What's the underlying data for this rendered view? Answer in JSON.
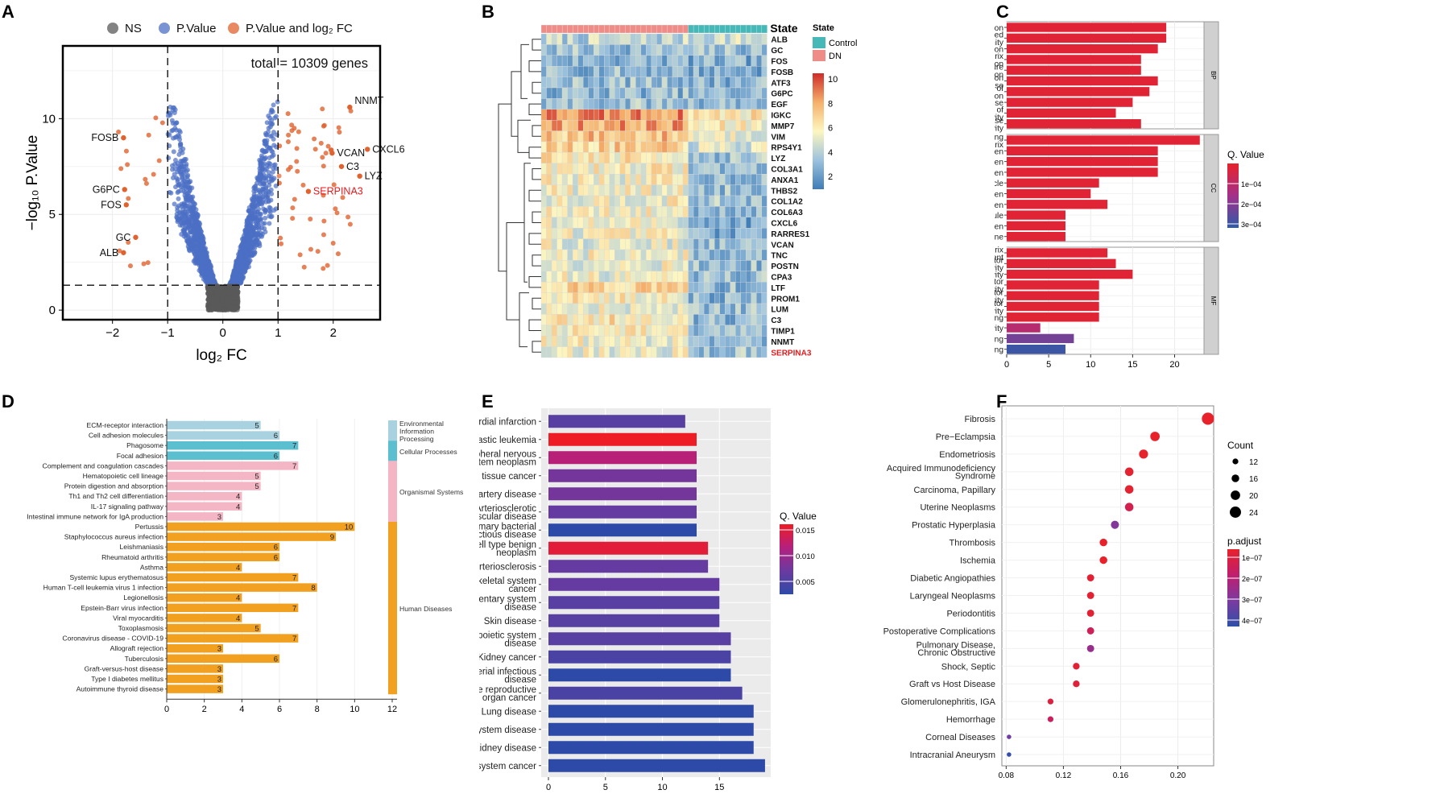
{
  "colors": {
    "ns": "#5a5a5a",
    "pvalue": "#4c6fc4",
    "pfc": "#e0622e",
    "highlight": "#e41a1c",
    "bar_red": "#e8222a",
    "envinfo": "#a9d2e0",
    "cellproc": "#5bbfcf",
    "organismal": "#f4b6c4",
    "human": "#f2a01f",
    "heat_low": "#3f7cb6",
    "heat_mid": "#fdf6c0",
    "heat_high": "#cf2c2a",
    "control": "#46b8b8",
    "dn": "#ee8c87"
  },
  "panel_labels": [
    "A",
    "B",
    "C",
    "D",
    "E",
    "F"
  ],
  "chart_data": [
    {
      "id": "A",
      "type": "scatter",
      "title": "total = 10309 genes",
      "xlabel": "log₂ FC",
      "ylabel": "−log₁₀ P.Value",
      "xlim": [
        -2.9,
        2.85
      ],
      "ylim": [
        -0.5,
        13.8
      ],
      "xticks": [
        -2,
        -1,
        0,
        1,
        2
      ],
      "xtick_labels": [
        "−2",
        "−1",
        "0",
        "1",
        "2"
      ],
      "yticks": [
        0,
        5,
        10
      ],
      "ytick_labels": [
        "0",
        "5",
        "10"
      ],
      "thresholds": {
        "fc": [
          -1,
          1
        ],
        "p": 1.3
      },
      "legend": [
        "NS",
        "P.Value",
        "P.Value and log₂ FC"
      ],
      "labeled_points": [
        {
          "label": "NNMT",
          "x": 2.3,
          "y": 10.6
        },
        {
          "label": "CXCL6",
          "x": 2.62,
          "y": 8.4
        },
        {
          "label": "VCAN",
          "x": 1.98,
          "y": 8.2
        },
        {
          "label": "C3",
          "x": 2.15,
          "y": 7.5
        },
        {
          "label": "LYZ",
          "x": 2.48,
          "y": 7.0
        },
        {
          "label": "SERPINA3",
          "x": 1.55,
          "y": 6.2,
          "highlight": true
        },
        {
          "label": "FOSB",
          "x": -1.8,
          "y": 9.0
        },
        {
          "label": "G6PC",
          "x": -1.78,
          "y": 6.3
        },
        {
          "label": "FOS",
          "x": -1.75,
          "y": 5.5
        },
        {
          "label": "GC",
          "x": -1.58,
          "y": 3.8
        },
        {
          "label": "ALB",
          "x": -1.8,
          "y": 3.0
        }
      ]
    },
    {
      "id": "B",
      "type": "heatmap",
      "legend_title": "State",
      "groups": [
        "Control",
        "DN"
      ],
      "scale_ticks": [
        "10",
        "8",
        "6",
        "4",
        "2"
      ],
      "scale_range": [
        1,
        11
      ],
      "n_dn": 28,
      "n_control": 15,
      "genes": [
        "ALB",
        "GC",
        "FOS",
        "FOSB",
        "ATF3",
        "G6PC",
        "EGF",
        "IGKC",
        "MMP7",
        "VIM",
        "RPS4Y1",
        "LYZ",
        "COL3A1",
        "ANXA1",
        "THBS2",
        "COL1A2",
        "COL6A3",
        "CXCL6",
        "RARRES1",
        "VCAN",
        "TNC",
        "POSTN",
        "CPA3",
        "LTF",
        "PROM1",
        "LUM",
        "C3",
        "TIMP1",
        "NNMT",
        "SERPINA3"
      ],
      "dn_level": [
        4.2,
        3.4,
        3.0,
        3.2,
        3.4,
        3.2,
        3.5,
        9.0,
        8.6,
        7.8,
        7.2,
        6.4,
        6.2,
        5.9,
        5.8,
        5.9,
        5.8,
        5.6,
        5.8,
        5.6,
        5.8,
        5.8,
        5.6,
        7.2,
        6.2,
        5.8,
        6.6,
        6.0,
        5.8,
        5.6
      ],
      "control_level": [
        4.8,
        3.4,
        2.7,
        2.8,
        3.0,
        3.0,
        3.4,
        6.6,
        6.0,
        5.8,
        5.0,
        3.6,
        3.6,
        3.4,
        3.4,
        3.6,
        3.4,
        2.6,
        2.8,
        3.3,
        3.2,
        3.3,
        3.3,
        3.2,
        3.0,
        3.4,
        3.2,
        3.4,
        3.5,
        3.6
      ]
    },
    {
      "id": "C",
      "type": "bar",
      "legend_title": "Q. Value",
      "legend_ticks": [
        "1e−04",
        "2e−04",
        "3e−04"
      ],
      "x_ticks": [
        0,
        5,
        10,
        15,
        20
      ],
      "xlim": [
        0,
        23.5
      ],
      "facets": [
        {
          "name": "BP",
          "categories": [
            "Neutrophil activation",
            "Neutrophil mediated immunity",
            "Neutrophil degranulation",
            "Extracellular matrix organization",
            "Extracellular structure organization",
            "Neutrophil activation involved in immune response",
            "Positive regulation of cytokine production",
            "Humoral immune response",
            "Negative regulation of endopeptidase activity",
            "Regulation of endopeptidase activity"
          ],
          "values": [
            19,
            19,
            18,
            16,
            16,
            18,
            17,
            15,
            13,
            16
          ],
          "q": [
            0.2,
            0.2,
            0.2,
            0.2,
            0.2,
            0.2,
            0.2,
            0.2,
            0.2,
            0.2
          ]
        },
        {
          "name": "CC",
          "categories": [
            "Collagen−containing extracellular matrix",
            "Secretory granule lumen",
            "Cytoplasmic vesicle lumen",
            "Vesicle lumen",
            "Blood microparticle",
            "Vacuolar lumen",
            "Endoplasmic reticulum lumen",
            "Platelet alpha granule",
            "Azurophil granule lumen",
            "Basement membrane"
          ],
          "values": [
            23,
            18,
            18,
            18,
            11,
            10,
            12,
            7,
            7,
            7
          ],
          "q": [
            0.2,
            0.2,
            0.2,
            0.2,
            0.2,
            0.2,
            0.2,
            0.2,
            0.2,
            0.2
          ]
        },
        {
          "name": "MF",
          "categories": [
            "Extracellular matrix structural constituent",
            "Peptidase regulator activity",
            "Enzyme inhibitor activity",
            "Endopeptidase inhibitor activity",
            "Peptidase inhibitor activity",
            "Endopeptidase regulator activity",
            "Glycosaminoglycan binding",
            "Lipase inhibitor activity",
            "Heparin binding",
            "Protease binding"
          ],
          "values": [
            12,
            13,
            15,
            11,
            11,
            11,
            11,
            4,
            8,
            7
          ],
          "q": [
            0.2,
            0.2,
            0.2,
            0.2,
            0.2,
            0.2,
            0.2,
            1.2,
            2.4,
            3.2
          ]
        }
      ]
    },
    {
      "id": "D",
      "type": "bar",
      "categories": [
        "ECM-receptor interaction",
        "Cell adhesion molecules",
        "Phagosome",
        "Focal adhesion",
        "Complement and coagulation cascades",
        "Hematopoietic cell lineage",
        "Protein digestion and absorption",
        "Th1 and Th2 cell differentiation",
        "IL-17 signaling pathway",
        "Intestinal immune network for IgA production",
        "Pertussis",
        "Staphylococcus aureus infection",
        "Leishmaniasis",
        "Rheumatoid arthritis",
        "Asthma",
        "Systemic lupus erythematosus",
        "Human T-cell leukemia virus 1 infection",
        "Legionellosis",
        "Epstein-Barr virus infection",
        "Viral myocarditis",
        "Toxoplasmosis",
        "Coronavirus disease - COVID-19",
        "Allograft rejection",
        "Tuberculosis",
        "Graft-versus-host disease",
        "Type I diabetes mellitus",
        "Autoimmune thyroid disease"
      ],
      "values": [
        5,
        6,
        7,
        6,
        7,
        5,
        5,
        4,
        4,
        3,
        10,
        9,
        6,
        6,
        4,
        7,
        8,
        4,
        7,
        4,
        5,
        7,
        3,
        6,
        3,
        3,
        3
      ],
      "class": [
        "env",
        "env",
        "cell",
        "cell",
        "org",
        "org",
        "org",
        "org",
        "org",
        "org",
        "hum",
        "hum",
        "hum",
        "hum",
        "hum",
        "hum",
        "hum",
        "hum",
        "hum",
        "hum",
        "hum",
        "hum",
        "hum",
        "hum",
        "hum",
        "hum",
        "hum"
      ],
      "x_ticks": [
        0,
        2,
        4,
        6,
        8,
        10,
        12
      ],
      "xlim": [
        0,
        12
      ],
      "groups": [
        {
          "name": "Environmental Information Processing",
          "lines": [
            "Environmental",
            "Information",
            "Processing"
          ],
          "start": 0,
          "end": 1,
          "key": "env"
        },
        {
          "name": "Cellular Processes",
          "lines": [
            "Cellular Processes"
          ],
          "start": 2,
          "end": 3,
          "key": "cell"
        },
        {
          "name": "Organismal Systems",
          "lines": [
            "Organismal Systems"
          ],
          "start": 4,
          "end": 9,
          "key": "org"
        },
        {
          "name": "Human Diseases",
          "lines": [
            "Human Diseases"
          ],
          "start": 10,
          "end": 26,
          "key": "hum"
        }
      ]
    },
    {
      "id": "E",
      "type": "bar",
      "legend_title": "Q. Value",
      "legend_ticks": [
        "0.015",
        "0.010",
        "0.005"
      ],
      "x_ticks": [
        0,
        5,
        10,
        15
      ],
      "xlim": [
        0,
        19.5
      ],
      "categories": [
        "Myocardial infarction",
        "Lymphoblastic leukemia",
        "Peripheral nervous system neoplasm",
        "Connective tissue cancer",
        "Coronary artery disease",
        "Arteriosclerotic cardiovascular disease",
        "Primary bacterial infectious disease",
        "Cell type benign neoplasm",
        "Arteriosclerosis",
        "Musculoskeletal system cancer",
        "Integumentary system disease",
        "Skin disease",
        "Hematopoietic system disease",
        "Kidney cancer",
        "Bacterial infectious disease",
        "Female reproductive organ cancer",
        "Lung disease",
        "Urinary system disease",
        "Kidney disease",
        "Urinary system cancer"
      ],
      "values": [
        12,
        13,
        13,
        13,
        13,
        13,
        13,
        14,
        14,
        15,
        15,
        15,
        16,
        16,
        16,
        17,
        18,
        18,
        18,
        19
      ],
      "q": [
        0.0055,
        0.0155,
        0.0115,
        0.0075,
        0.0075,
        0.0065,
        0.0025,
        0.0145,
        0.0065,
        0.0065,
        0.0055,
        0.0055,
        0.0055,
        0.0045,
        0.0025,
        0.0045,
        0.0025,
        0.0025,
        0.0025,
        0.0025
      ]
    },
    {
      "id": "F",
      "type": "scatter",
      "legend_count_title": "Count",
      "legend_count": [
        "12",
        "16",
        "20",
        "24"
      ],
      "legend_padj_title": "p.adjust",
      "legend_padj": [
        "1e−07",
        "2e−07",
        "3e−07",
        "4e−07"
      ],
      "x_ticks": [
        0.08,
        0.12,
        0.16,
        0.2
      ],
      "x_tick_labels": [
        "0.08",
        "0.12",
        "0.16",
        "0.20"
      ],
      "xlim": [
        0.077,
        0.225
      ],
      "categories": [
        "Fibrosis",
        "Pre−Eclampsia",
        "Endometriosis",
        "Acquired Immunodeficiency Syndrome",
        "Carcinoma, Papillary",
        "Uterine Neoplasms",
        "Prostatic Hyperplasia",
        "Thrombosis",
        "Ischemia",
        "Diabetic Angiopathies",
        "Laryngeal Neoplasms",
        "Periodontitis",
        "Postoperative Complications",
        "Pulmonary Disease, Chronic Obstructive",
        "Shock, Septic",
        "Graft vs Host Disease",
        "Glomerulonephritis, IGA",
        "Hemorrhage",
        "Corneal Diseases",
        "Intracranial Aneurysm"
      ],
      "x": [
        0.221,
        0.184,
        0.176,
        0.166,
        0.166,
        0.166,
        0.156,
        0.148,
        0.148,
        0.139,
        0.139,
        0.139,
        0.139,
        0.139,
        0.129,
        0.129,
        0.111,
        0.111,
        0.082,
        0.082
      ],
      "count": [
        26,
        20,
        19,
        18,
        18,
        18,
        17,
        16,
        16,
        15,
        15,
        15,
        15,
        15,
        14,
        14,
        12,
        12,
        9,
        9
      ],
      "padj": [
        0.5,
        0.5,
        0.5,
        0.6,
        0.6,
        1.2,
        3.0,
        0.5,
        0.5,
        0.7,
        0.7,
        0.7,
        1.4,
        2.6,
        0.7,
        0.8,
        0.9,
        1.5,
        3.4,
        4.4
      ]
    }
  ]
}
